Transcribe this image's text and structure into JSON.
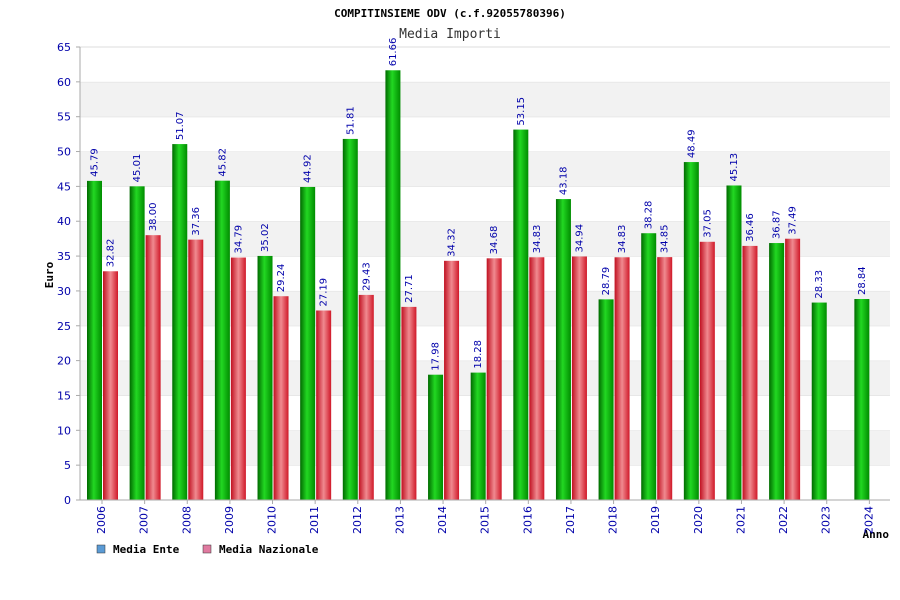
{
  "chart_data": {
    "type": "bar",
    "title": "COMPITINSIEME ODV (c.f.92055780396)",
    "subtitle": "Media Importi",
    "ylabel": "Euro",
    "xlabel": "Anno",
    "ylim": [
      0,
      65
    ],
    "ytick_step": 5,
    "grid": true,
    "legend_position": "bottom-left",
    "categories": [
      "2006",
      "2007",
      "2008",
      "2009",
      "2010",
      "2011",
      "2012",
      "2013",
      "2014",
      "2015",
      "2016",
      "2017",
      "2018",
      "2019",
      "2020",
      "2021",
      "2022",
      "2023",
      "2024"
    ],
    "series": [
      {
        "name": "Media Ente",
        "color": "#14b814",
        "legend_color": "#5b9bd5",
        "labels": [
          "45.79",
          "45.01",
          "51.07",
          "45.82",
          "35.02",
          "44.92",
          "51.81",
          "61.66",
          "17.98",
          "18.28",
          "53.15",
          "43.18",
          "28.79",
          "38.28",
          "48.49",
          "45.13",
          "36.87",
          "28.33",
          "28.84"
        ],
        "values": [
          45.79,
          45.01,
          51.07,
          45.82,
          35.02,
          44.92,
          51.81,
          61.66,
          17.98,
          18.28,
          53.15,
          43.18,
          28.79,
          38.28,
          48.49,
          45.13,
          36.87,
          28.33,
          28.84
        ]
      },
      {
        "name": "Media Nazionale",
        "color": "#e0303a",
        "legend_color": "#e07aa0",
        "labels": [
          "32.82",
          "38.00",
          "37.36",
          "34.79",
          "29.24",
          "27.19",
          "29.43",
          "27.71",
          "34.32",
          "34.68",
          "34.83",
          "34.94",
          "34.83",
          "34.85",
          "37.05",
          "36.46",
          "37.49",
          null,
          null
        ],
        "values": [
          32.82,
          38.0,
          37.36,
          34.79,
          29.24,
          27.19,
          29.43,
          27.71,
          34.32,
          34.68,
          34.83,
          34.94,
          34.83,
          34.85,
          37.05,
          36.46,
          37.49,
          null,
          null
        ]
      }
    ]
  }
}
